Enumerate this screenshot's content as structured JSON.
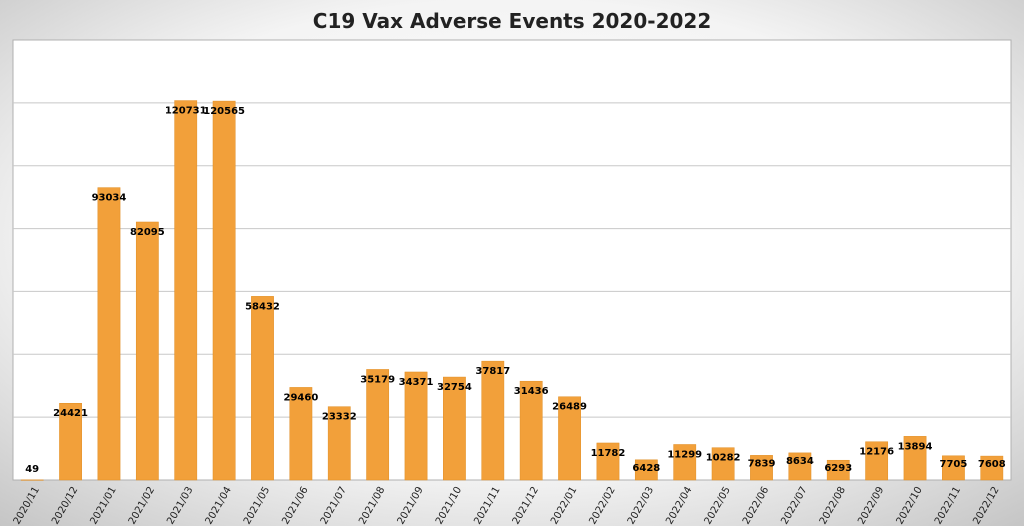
{
  "chart_data": {
    "type": "bar",
    "title": "C19 Vax Adverse Events 2020-2022",
    "xlabel": "",
    "ylabel": "",
    "categories": [
      "2020/11",
      "2020/12",
      "2021/01",
      "2021/02",
      "2021/03",
      "2021/04",
      "2021/05",
      "2021/06",
      "2021/07",
      "2021/08",
      "2021/09",
      "2021/10",
      "2021/11",
      "2021/12",
      "2022/01",
      "2022/02",
      "2022/03",
      "2022/04",
      "2022/05",
      "2022/06",
      "2022/07",
      "2022/08",
      "2022/09",
      "2022/10",
      "2022/11",
      "2022/12"
    ],
    "values": [
      49,
      24421,
      93034,
      82095,
      120731,
      120565,
      58432,
      29460,
      23332,
      35179,
      34371,
      32754,
      37817,
      31436,
      26489,
      11782,
      6428,
      11299,
      10282,
      7839,
      8634,
      6293,
      12176,
      13894,
      7705,
      7608
    ],
    "ylim": [
      0,
      140000
    ],
    "grid": true,
    "legend": "none",
    "colors": {
      "bar": "#f2a03a",
      "bar_edge": "#e08e24",
      "grid": "#c8c8c8",
      "plot_border": "#b0b0b0",
      "background_outer": "#cfcfcf",
      "background_inner": "#ffffff"
    }
  }
}
